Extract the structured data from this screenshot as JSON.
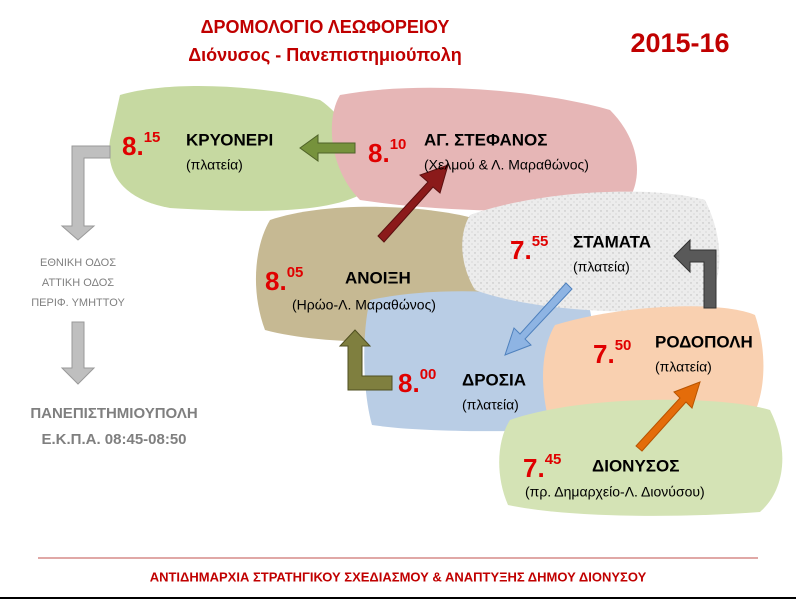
{
  "header": {
    "title": "ΔΡΟΜΟΛΟΓΙΟ ΛΕΩΦΟΡΕΙΟΥ",
    "subtitle": "Διόνυσος - Πανεπιστημιούπολη",
    "year": "2015-16"
  },
  "stops": [
    {
      "time": "7.",
      "time_sup": "45",
      "name": "ΔΙΟΝΥΣΟΣ",
      "location": "(πρ. Δημαρχείο-Λ. Διονύσου)"
    },
    {
      "time": "7.",
      "time_sup": "50",
      "name": "ΡΟΔΟΠΟΛΗ",
      "location": "(πλατεία)"
    },
    {
      "time": "7.",
      "time_sup": "55",
      "name": "ΣΤΑΜΑΤΑ",
      "location": "(πλατεία)"
    },
    {
      "time": "8.",
      "time_sup": "00",
      "name": "ΔΡΟΣΙΑ",
      "location": "(πλατεία)"
    },
    {
      "time": "8.",
      "time_sup": "05",
      "name": "ΑΝΟΙΞΗ",
      "location": "(Ηρώο-Λ. Μαραθώνος)"
    },
    {
      "time": "8.",
      "time_sup": "10",
      "name": "ΑΓ. ΣΤΕΦΑΝΟΣ",
      "location": "(Χελμού & Λ. Μαραθώνος)"
    },
    {
      "time": "8.",
      "time_sup": "15",
      "name": "ΚΡΥΟΝΕΡΙ",
      "location": "(πλατεία)"
    }
  ],
  "route": {
    "roads": [
      "ΕΘΝΙΚΗ ΟΔΟΣ",
      "ΑΤΤΙΚΗ ΟΔΟΣ",
      "ΠΕΡΙΦ. ΥΜΗΤΤΟΥ"
    ],
    "destination": [
      "ΠΑΝΕΠΙΣΤΗΜΙΟΥΠΟΛΗ",
      "Ε.Κ.Π.Α. 08:45-08:50"
    ]
  },
  "footer": "ΑΝΤΙΔΗΜΑΡΧΙΑ ΣΤΡΑΤΗΓΙΚΟΥ ΣΧΕΔΙΑΣΜΟΥ & ΑΝΑΠΤΥΞΗΣ ΔΗΜΟΥ ΔΙΟΝΥΣΟΥ"
}
